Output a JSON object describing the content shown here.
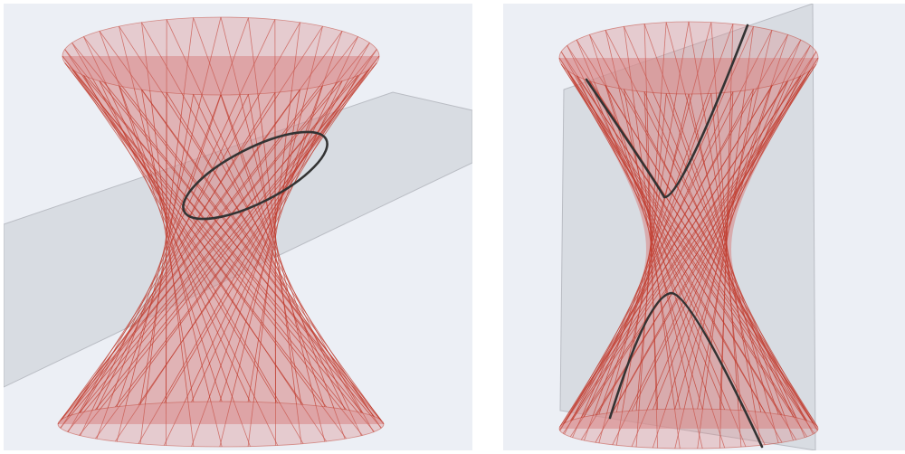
{
  "figure": {
    "panels": [
      {
        "id": "left",
        "section": "ellipse"
      },
      {
        "id": "right",
        "section": "hyperbola"
      }
    ]
  },
  "colors": {
    "background": "#eceff5",
    "surface_fill": "#d98a8a",
    "ruling_line": "#c0392b",
    "plane_fill": "#c9ccd2",
    "plane_edge": "#b9bcc3",
    "section_curve": "#333333"
  }
}
